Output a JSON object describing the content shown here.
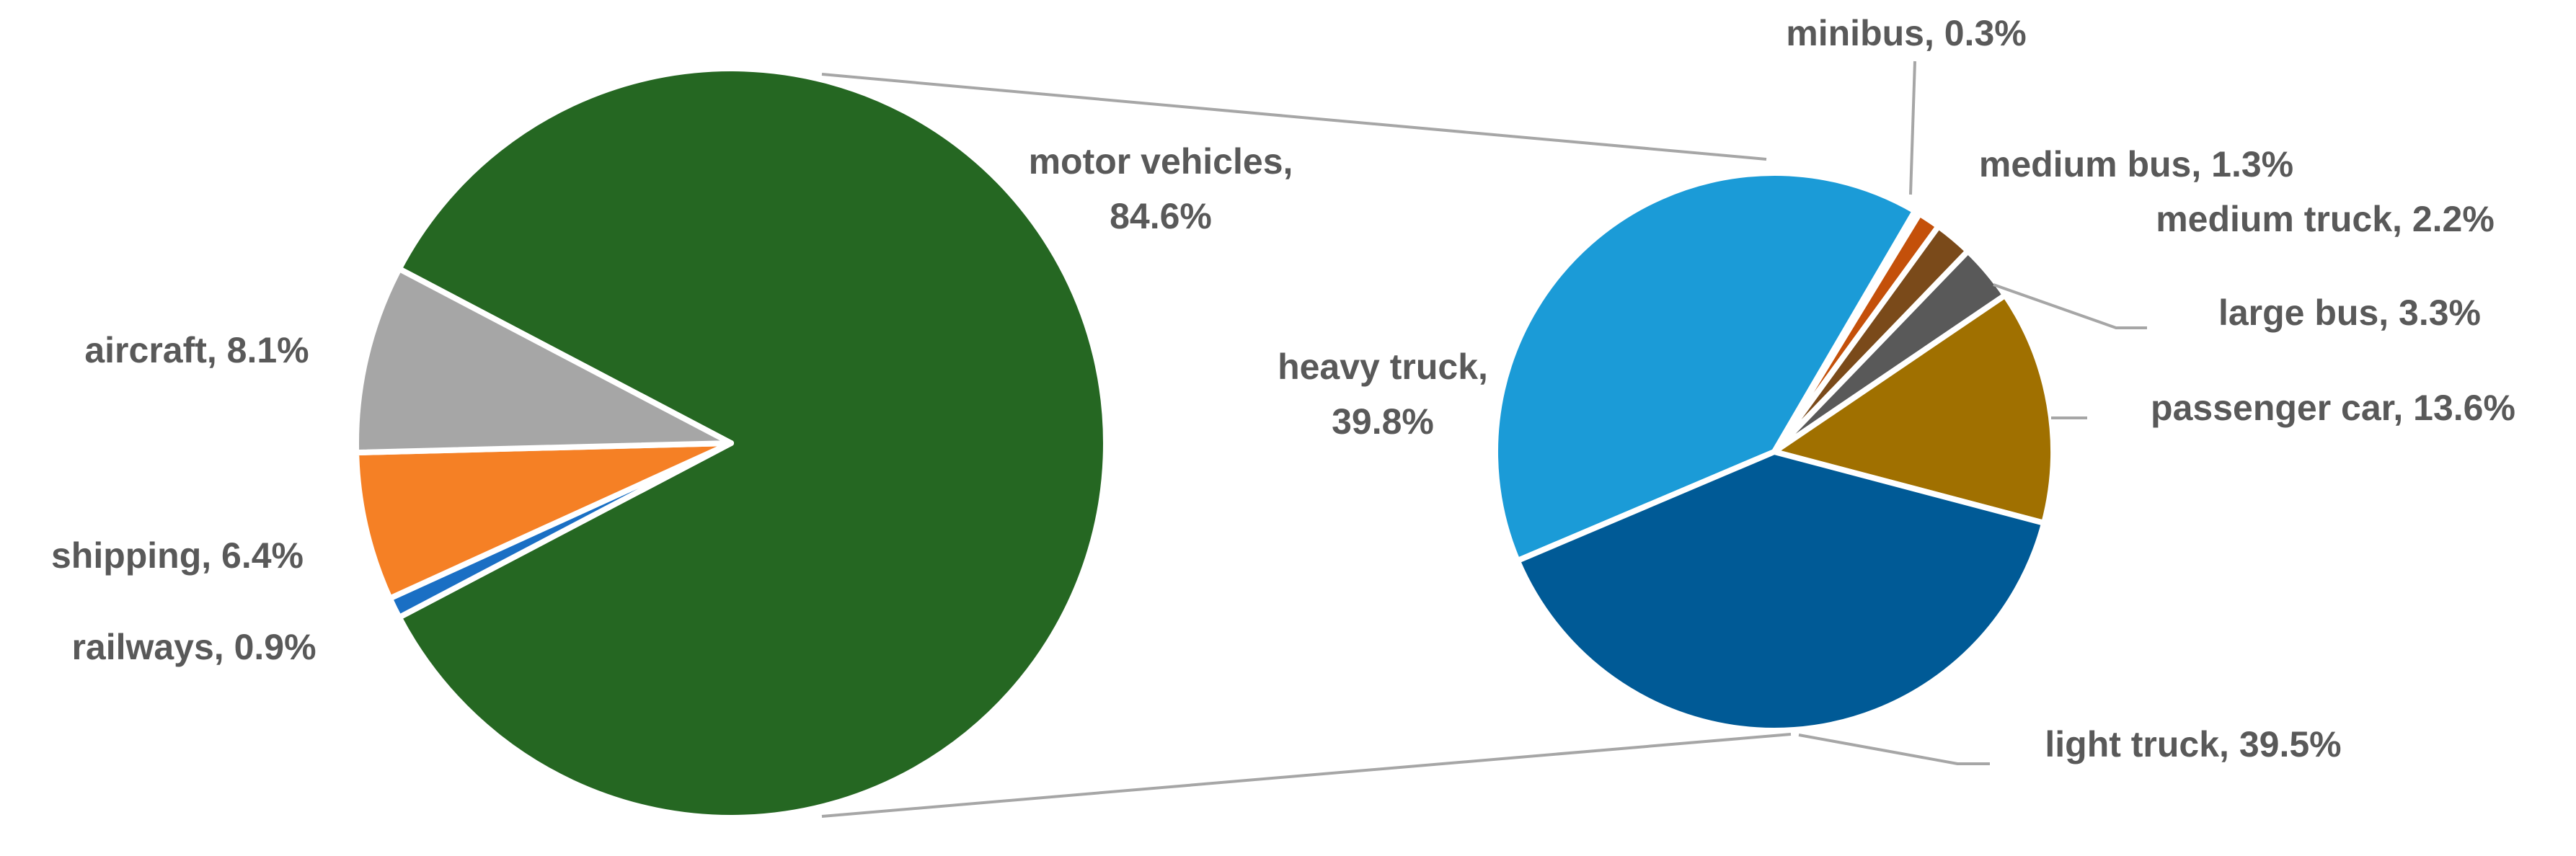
{
  "chart_data": [
    {
      "type": "pie",
      "values": [
        84.6,
        0.9,
        6.4,
        8.1
      ],
      "value_labels": [
        "motor vehicles, 84.6%",
        "railways, 0.9%",
        "shipping, 6.4%",
        "aircraft, 8.1%"
      ],
      "colors": [
        "#256722",
        "#1a6fc4",
        "#f58025",
        "#a6a6a6"
      ]
    },
    {
      "type": "pie",
      "values": [
        39.8,
        0.3,
        1.3,
        2.2,
        3.3,
        13.6,
        39.5
      ],
      "value_labels": [
        "heavy truck, 39.8%",
        "minibus, 0.3%",
        "medium bus, 1.3%",
        "medium truck, 2.2%",
        "large bus, 3.3%",
        "passenger car, 13.6%",
        "light truck, 39.5%"
      ],
      "colors": [
        "#1b9bd7",
        "#0e3f73",
        "#c4500a",
        "#7a4a1a",
        "#595959",
        "#a07000",
        "#005a96"
      ]
    }
  ]
}
